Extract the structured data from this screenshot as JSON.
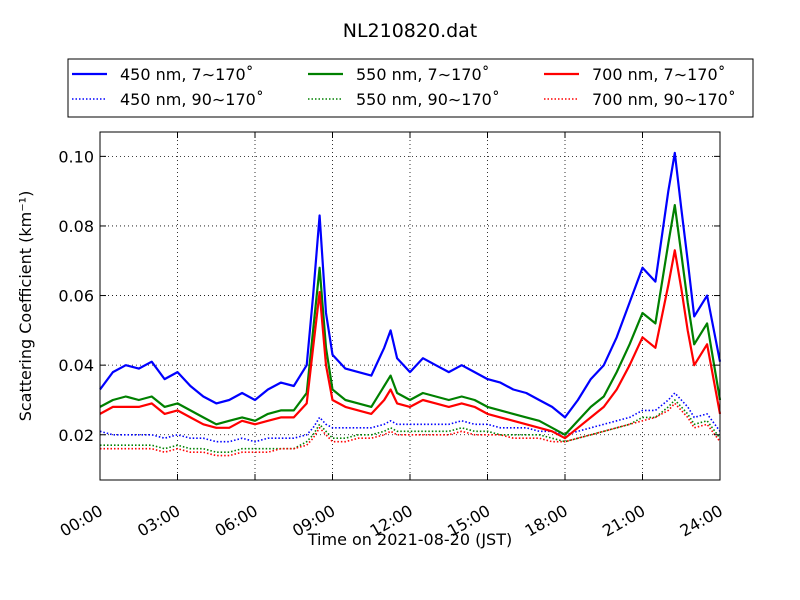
{
  "chart_data": {
    "type": "line",
    "title": "NL210820.dat",
    "xlabel": "Time on 2021-08-20 (JST)",
    "ylabel": "Scattering Coefficient (km⁻¹)",
    "xlim": [
      "00:00",
      "24:00"
    ],
    "ylim": [
      0.007,
      0.107
    ],
    "x_ticks": [
      "00:00",
      "03:00",
      "06:00",
      "09:00",
      "12:00",
      "15:00",
      "18:00",
      "21:00",
      "24:00"
    ],
    "y_ticks": [
      "0.02",
      "0.04",
      "0.06",
      "0.08",
      "0.10"
    ],
    "grid": true,
    "legend_position": "top",
    "x": [
      "00:00",
      "00:30",
      "01:00",
      "01:30",
      "02:00",
      "02:30",
      "03:00",
      "03:30",
      "04:00",
      "04:30",
      "05:00",
      "05:30",
      "06:00",
      "06:30",
      "07:00",
      "07:30",
      "08:00",
      "08:15",
      "08:30",
      "08:45",
      "09:00",
      "09:30",
      "10:00",
      "10:30",
      "11:00",
      "11:15",
      "11:30",
      "12:00",
      "12:30",
      "13:00",
      "13:30",
      "14:00",
      "14:30",
      "15:00",
      "15:30",
      "16:00",
      "16:30",
      "17:00",
      "17:30",
      "18:00",
      "18:30",
      "19:00",
      "19:30",
      "20:00",
      "20:30",
      "21:00",
      "21:30",
      "22:00",
      "22:15",
      "22:30",
      "22:45",
      "23:00",
      "23:30",
      "24:00"
    ],
    "series": [
      {
        "name": "450 nm, 7∼170˚",
        "color": "#0000ff",
        "style": "solid",
        "values": [
          0.033,
          0.038,
          0.04,
          0.039,
          0.041,
          0.036,
          0.038,
          0.034,
          0.031,
          0.029,
          0.03,
          0.032,
          0.03,
          0.033,
          0.035,
          0.034,
          0.04,
          0.06,
          0.083,
          0.055,
          0.043,
          0.039,
          0.038,
          0.037,
          0.045,
          0.05,
          0.042,
          0.038,
          0.042,
          0.04,
          0.038,
          0.04,
          0.038,
          0.036,
          0.035,
          0.033,
          0.032,
          0.03,
          0.028,
          0.025,
          0.03,
          0.036,
          0.04,
          0.048,
          0.058,
          0.068,
          0.064,
          0.09,
          0.101,
          0.085,
          0.07,
          0.054,
          0.06,
          0.041
        ]
      },
      {
        "name": "550 nm, 7∼170˚",
        "color": "#008000",
        "style": "solid",
        "values": [
          0.028,
          0.03,
          0.031,
          0.03,
          0.031,
          0.028,
          0.029,
          0.027,
          0.025,
          0.023,
          0.024,
          0.025,
          0.024,
          0.026,
          0.027,
          0.027,
          0.032,
          0.05,
          0.068,
          0.045,
          0.033,
          0.03,
          0.029,
          0.028,
          0.034,
          0.037,
          0.032,
          0.03,
          0.032,
          0.031,
          0.03,
          0.031,
          0.03,
          0.028,
          0.027,
          0.026,
          0.025,
          0.024,
          0.022,
          0.02,
          0.024,
          0.028,
          0.031,
          0.038,
          0.046,
          0.055,
          0.052,
          0.075,
          0.086,
          0.072,
          0.058,
          0.046,
          0.052,
          0.03
        ]
      },
      {
        "name": "700 nm, 7∼170˚",
        "color": "#ff0000",
        "style": "solid",
        "values": [
          0.026,
          0.028,
          0.028,
          0.028,
          0.029,
          0.026,
          0.027,
          0.025,
          0.023,
          0.022,
          0.022,
          0.024,
          0.023,
          0.024,
          0.025,
          0.025,
          0.029,
          0.045,
          0.061,
          0.04,
          0.03,
          0.028,
          0.027,
          0.026,
          0.03,
          0.033,
          0.029,
          0.028,
          0.03,
          0.029,
          0.028,
          0.029,
          0.028,
          0.026,
          0.025,
          0.024,
          0.023,
          0.022,
          0.021,
          0.019,
          0.022,
          0.025,
          0.028,
          0.033,
          0.04,
          0.048,
          0.045,
          0.063,
          0.073,
          0.062,
          0.05,
          0.04,
          0.046,
          0.026
        ]
      },
      {
        "name": "450 nm, 90∼170˚",
        "color": "#0000ff",
        "style": "dotted",
        "values": [
          0.021,
          0.02,
          0.02,
          0.02,
          0.02,
          0.019,
          0.02,
          0.019,
          0.019,
          0.018,
          0.018,
          0.019,
          0.018,
          0.019,
          0.019,
          0.019,
          0.02,
          0.022,
          0.025,
          0.023,
          0.022,
          0.022,
          0.022,
          0.022,
          0.023,
          0.024,
          0.023,
          0.023,
          0.023,
          0.023,
          0.023,
          0.024,
          0.023,
          0.023,
          0.022,
          0.022,
          0.022,
          0.021,
          0.021,
          0.02,
          0.021,
          0.022,
          0.023,
          0.024,
          0.025,
          0.027,
          0.027,
          0.03,
          0.032,
          0.03,
          0.028,
          0.025,
          0.026,
          0.021
        ]
      },
      {
        "name": "550 nm, 90∼170˚",
        "color": "#008000",
        "style": "dotted",
        "values": [
          0.017,
          0.017,
          0.017,
          0.017,
          0.017,
          0.016,
          0.017,
          0.016,
          0.016,
          0.015,
          0.015,
          0.016,
          0.016,
          0.016,
          0.016,
          0.016,
          0.018,
          0.02,
          0.023,
          0.021,
          0.019,
          0.019,
          0.02,
          0.02,
          0.021,
          0.022,
          0.021,
          0.021,
          0.021,
          0.021,
          0.021,
          0.022,
          0.021,
          0.021,
          0.02,
          0.02,
          0.02,
          0.02,
          0.019,
          0.018,
          0.019,
          0.02,
          0.021,
          0.022,
          0.023,
          0.025,
          0.025,
          0.028,
          0.03,
          0.028,
          0.026,
          0.023,
          0.024,
          0.019
        ]
      },
      {
        "name": "700 nm, 90∼170˚",
        "color": "#ff0000",
        "style": "dotted",
        "values": [
          0.016,
          0.016,
          0.016,
          0.016,
          0.016,
          0.015,
          0.016,
          0.015,
          0.015,
          0.014,
          0.014,
          0.015,
          0.015,
          0.015,
          0.016,
          0.016,
          0.017,
          0.019,
          0.022,
          0.02,
          0.018,
          0.018,
          0.019,
          0.019,
          0.02,
          0.021,
          0.02,
          0.02,
          0.02,
          0.02,
          0.02,
          0.021,
          0.02,
          0.02,
          0.02,
          0.019,
          0.019,
          0.019,
          0.018,
          0.018,
          0.019,
          0.02,
          0.021,
          0.022,
          0.023,
          0.024,
          0.025,
          0.027,
          0.029,
          0.027,
          0.025,
          0.022,
          0.023,
          0.018
        ]
      }
    ]
  }
}
